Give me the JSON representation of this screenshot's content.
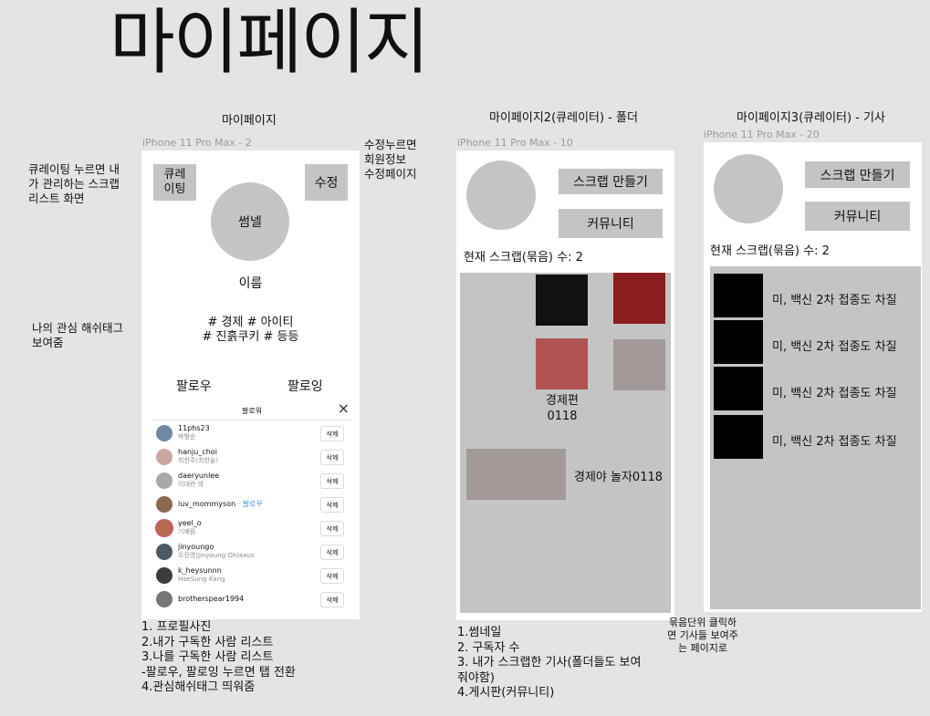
{
  "title": "마이페이지",
  "left_notes": {
    "curating": "큐레이팅 누르면 내\n가 관리하는 스크랩\n리스트 화면",
    "hashtags": "나의 관심 해쉬태그\n보여줌",
    "edit": "수정누르면\n회원정보\n수정페이지"
  },
  "frame1": {
    "label": "마이페이지",
    "device": "iPhone 11 Pro Max - 2",
    "curate_btn": "큐레\n이팅",
    "edit_btn": "수정",
    "thumbnail": "썸넬",
    "name": "이름",
    "tags_line1": "# 경제 # 아이티",
    "tags_line2": "# 진흙쿠키 # 등등",
    "follower_tab": "팔로우",
    "following_tab": "팔로잉",
    "follow_list": {
      "header": "팔로워",
      "close": "×",
      "rows": [
        {
          "user": "11phs23",
          "name": "박형순",
          "btn": "삭제"
        },
        {
          "user": "hanju_choi",
          "name": "최한주(최한솔)",
          "btn": "삭제"
        },
        {
          "user": "daeryunlee",
          "name": "이대련 의",
          "btn": "삭제"
        },
        {
          "user": "luv_mommyson",
          "follow": "· 팔로우",
          "btn": "삭제"
        },
        {
          "user": "yeel_o",
          "name": "기예림",
          "btn": "삭제"
        },
        {
          "user": "jinyoungo",
          "name": "오진영(Jinyoung Oh)ʀᴀᴜs",
          "btn": "삭제"
        },
        {
          "user": "k_heysunnn",
          "name": "HaeSung Kang",
          "btn": "삭제"
        },
        {
          "user": "brotherspear1994",
          "btn": "삭제"
        }
      ]
    },
    "notes": "1. 프로필사진\n2.내가 구독한 사람 리스트\n3.나를 구독한 사람 리스트\n   -팔로우, 팔로잉 누르면 탭 전환\n4.관심해쉬태그 띄워줌"
  },
  "frame2": {
    "label": "마이페이지2(큐레이터) - 폴더",
    "device": "iPhone 11 Pro Max - 10",
    "scrap_btn": "스크랩 만들기",
    "community_btn": "커뮤니티",
    "count": "현재 스크랩(묶음) 수: 2",
    "folder1": "경제편\n0118",
    "folder2": "경제야 놀자0118",
    "notes": "1.썸네일\n2. 구독자 수\n3. 내가 스크랩한 기사(폴더들도 보여\n줘야함)\n4.게시판(커뮤니티)",
    "colors": {
      "black": "#111111",
      "red": "#8b1f1f",
      "rose": "#b25353",
      "gray": "#a29a99"
    }
  },
  "middle_note": "묶음단위 클릭하\n면 기사들 보여주\n는 페이지로",
  "frame3": {
    "label": "마이페이지3(큐레이터) - 기사",
    "device": "iPhone 11 Pro Max - 20",
    "scrap_btn": "스크랩 만들기",
    "community_btn": "커뮤니티",
    "count": "현재 스크랩(묶음) 수: 2",
    "articles": [
      "미, 백신 2차 접종도 차질",
      "미, 백신 2차 접종도 차질",
      "미, 백신 2차 접종도 차질",
      "미, 백신 2차 접종도 차질"
    ]
  }
}
